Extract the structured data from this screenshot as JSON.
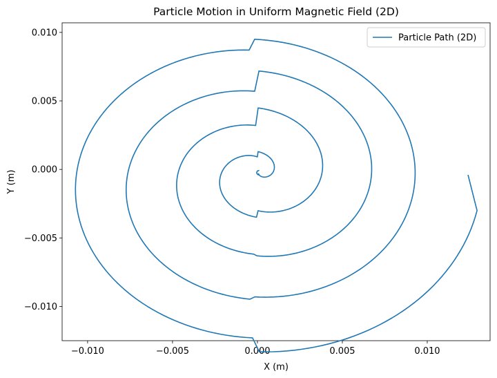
{
  "chart_data": {
    "type": "line",
    "title": "Particle Motion in Uniform Magnetic Field (2D)",
    "xlabel": "X (m)",
    "ylabel": "Y (m)",
    "xlim": [
      -0.0115,
      0.0137
    ],
    "ylim": [
      -0.0125,
      0.0107
    ],
    "xticks": [
      -0.01,
      -0.005,
      0.0,
      0.005,
      0.01
    ],
    "xtick_labels": [
      "−0.010",
      "−0.005",
      "0.000",
      "0.005",
      "0.010"
    ],
    "yticks": [
      -0.01,
      -0.005,
      0.0,
      0.005,
      0.01
    ],
    "ytick_labels": [
      "−0.010",
      "−0.005",
      "0.000",
      "0.005",
      "0.010"
    ],
    "grid": false,
    "legend_position": "top-right",
    "series": [
      {
        "name": "Particle Path (2D)",
        "color": "#1f77b4",
        "shape": "outward spiral, 5.5 turns",
        "start_point": [
          0.0,
          0.0
        ],
        "end_point": [
          0.0124,
          -0.0004
        ],
        "spiral_center": [
          -0.0002,
          -0.0008
        ],
        "radius_start": 0.0,
        "radius_end": 0.0126,
        "turns": 5.5,
        "extremes": {
          "x_min": -0.0104,
          "x_max": 0.0124,
          "y_min": -0.0114,
          "y_max": 0.0096
        }
      }
    ]
  }
}
